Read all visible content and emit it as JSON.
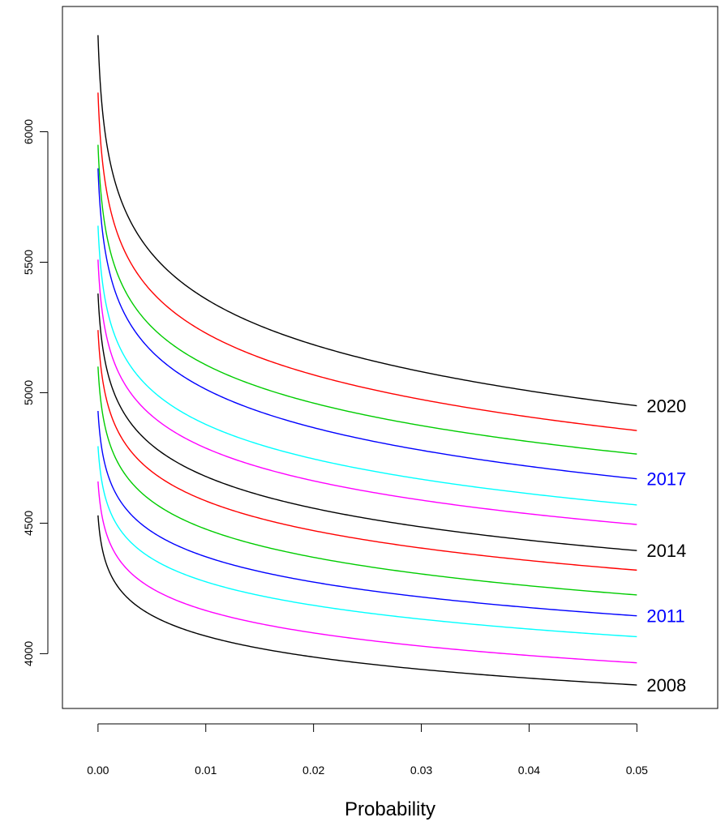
{
  "chart_data": {
    "type": "line",
    "xlabel": "Probability",
    "ylabel": "",
    "xlim": [
      -0.0033,
      0.0575
    ],
    "ylim": [
      3790,
      6480
    ],
    "x_ticks": [
      "0.00",
      "0.01",
      "0.02",
      "0.03",
      "0.04",
      "0.05"
    ],
    "x_tick_values": [
      0,
      0.01,
      0.02,
      0.03,
      0.04,
      0.05
    ],
    "y_ticks": [
      "4000",
      "4500",
      "5000",
      "5500",
      "6000"
    ],
    "y_tick_values": [
      4000,
      4500,
      5000,
      5500,
      6000
    ],
    "grid": false,
    "series": [
      {
        "year": 2008,
        "color": "#000000",
        "start": 4530,
        "end": 3880
      },
      {
        "year": 2009,
        "color": "#ff00ff",
        "start": 4660,
        "end": 3965
      },
      {
        "year": 2010,
        "color": "#00ffff",
        "start": 4795,
        "end": 4065
      },
      {
        "year": 2011,
        "color": "#0000ff",
        "start": 4930,
        "end": 4145
      },
      {
        "year": 2012,
        "color": "#00cc00",
        "start": 5100,
        "end": 4225
      },
      {
        "year": 2013,
        "color": "#ff0000",
        "start": 5240,
        "end": 4320
      },
      {
        "year": 2014,
        "color": "#000000",
        "start": 5380,
        "end": 4395
      },
      {
        "year": 2015,
        "color": "#ff00ff",
        "start": 5510,
        "end": 4495
      },
      {
        "year": 2016,
        "color": "#00ffff",
        "start": 5640,
        "end": 4570
      },
      {
        "year": 2017,
        "color": "#0000ff",
        "start": 5860,
        "end": 4670
      },
      {
        "year": 2018,
        "color": "#00cc00",
        "start": 5950,
        "end": 4765
      },
      {
        "year": 2019,
        "color": "#ff0000",
        "start": 6150,
        "end": 4855
      },
      {
        "year": 2020,
        "color": "#000000",
        "start": 6370,
        "end": 4950
      }
    ],
    "labels": [
      {
        "text": "2020",
        "y": 4950,
        "color": "#000000"
      },
      {
        "text": "2017",
        "y": 4670,
        "color": "#0000ff"
      },
      {
        "text": "2014",
        "y": 4395,
        "color": "#000000"
      },
      {
        "text": "2011",
        "y": 4145,
        "color": "#0000ff"
      },
      {
        "text": "2008",
        "y": 3880,
        "color": "#000000"
      }
    ]
  }
}
